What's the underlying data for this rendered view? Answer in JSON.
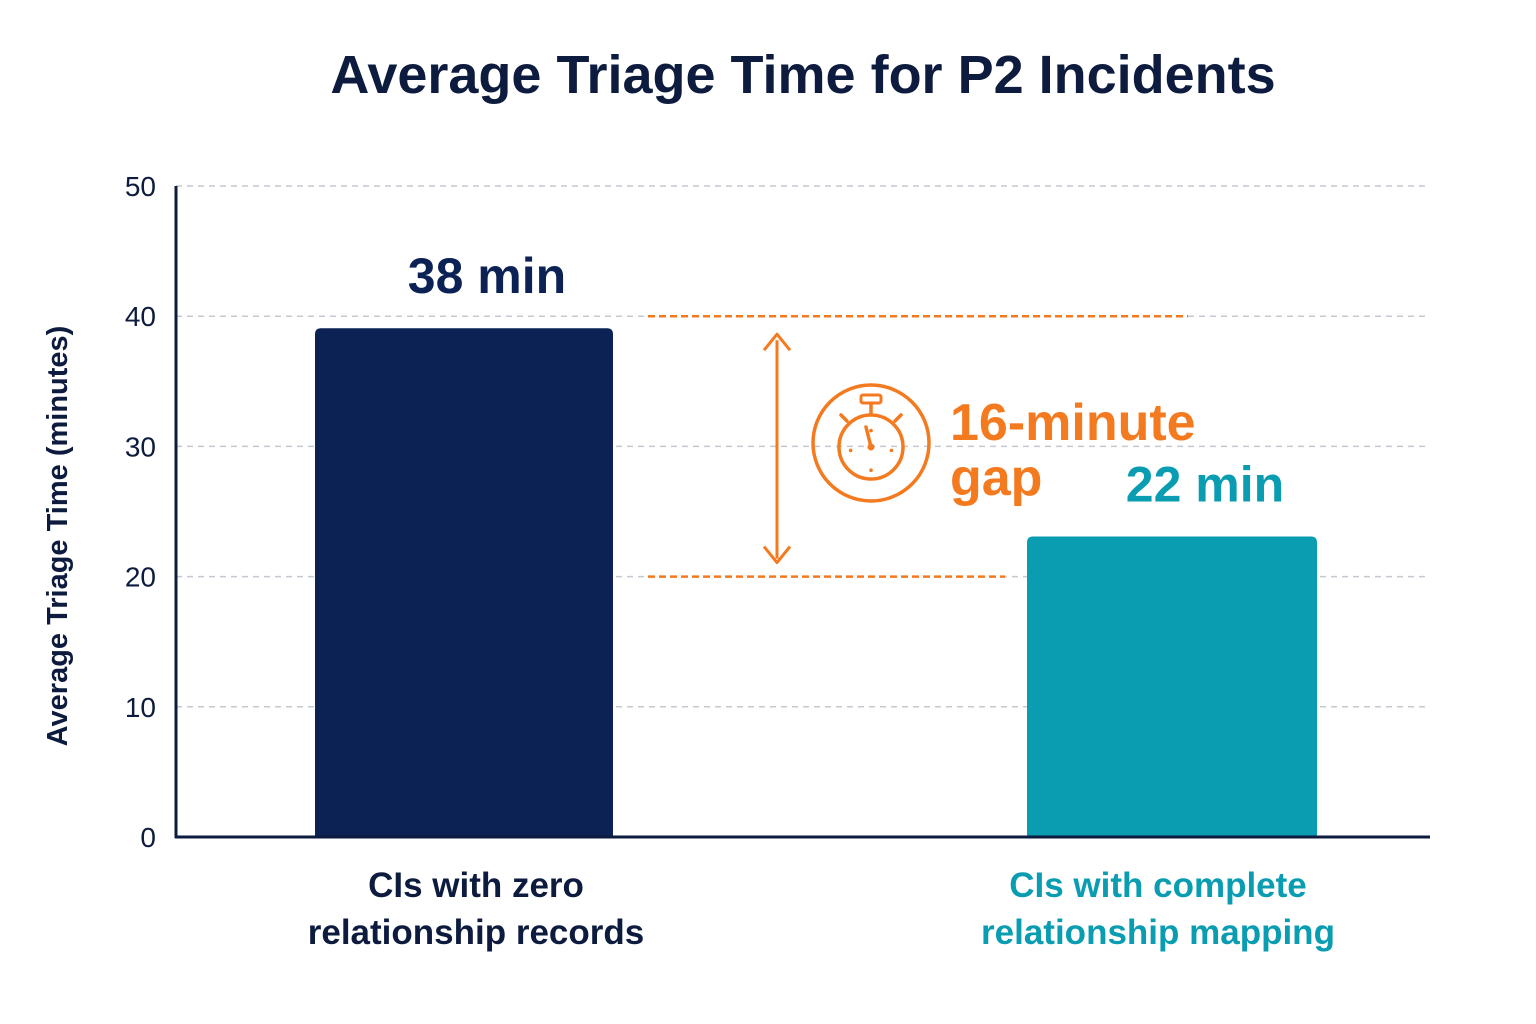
{
  "chart_data": {
    "type": "bar",
    "title": "Average Triage Time for P2 Incidents",
    "ylabel": "Average Triage Time (minutes)",
    "xlabel": "",
    "ylim": [
      0,
      50
    ],
    "yticks": [
      0,
      10,
      20,
      30,
      40,
      50
    ],
    "grid": true,
    "categories": [
      [
        "CIs with zero",
        "relationship records"
      ],
      [
        "CIs with complete",
        "relationship mapping"
      ]
    ],
    "values": [
      38,
      22
    ],
    "value_labels": [
      "38 min",
      "22 min"
    ],
    "colors": {
      "bar_primary": "#0c2254",
      "bar_secondary": "#0a9db2",
      "annotation": "#f47a20",
      "axis": "#0d1b3e",
      "grid": "#c4c8d0"
    },
    "annotation": {
      "lines": [
        "16-minute",
        "gap"
      ],
      "from_value": 40,
      "to_value": 20,
      "icon": "stopwatch-icon"
    }
  }
}
